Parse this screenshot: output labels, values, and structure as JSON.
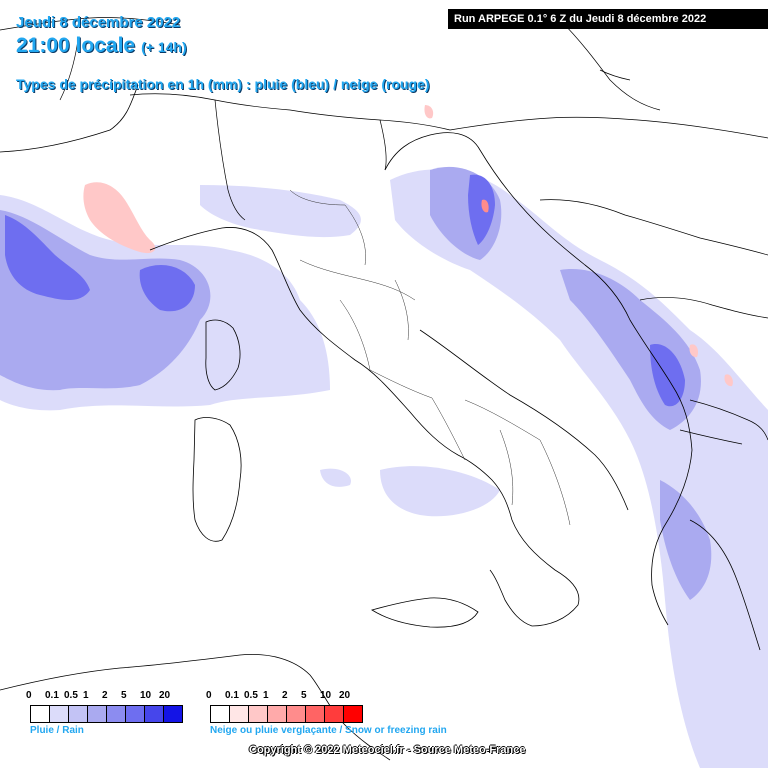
{
  "header": {
    "date_line": "Jeudi 8 décembre 2022",
    "time_line": "21:00 locale",
    "offset": "(+ 14h)",
    "subtitle": "Types de précipitation en 1h (mm) : pluie (bleu) / neige (rouge)",
    "run_label": "Run ARPEGE 0.1° 6 Z du Jeudi 8 décembre 2022"
  },
  "legend": {
    "rain": {
      "ticks": [
        "0",
        "0.1",
        "0.5",
        "1",
        "2",
        "5",
        "10",
        "20"
      ],
      "colors": [
        "#ffffff",
        "#dcdcfa",
        "#c3c3f5",
        "#aaaaf0",
        "#8c8cf0",
        "#6e6ef0",
        "#4646eb",
        "#1414e6"
      ],
      "label": "Pluie / Rain"
    },
    "snow": {
      "ticks": [
        "0",
        "0.1",
        "0.5",
        "1",
        "2",
        "5",
        "10",
        "20"
      ],
      "colors": [
        "#ffffff",
        "#ffe6e6",
        "#ffc8c8",
        "#ffaaaa",
        "#ff8c8c",
        "#ff6464",
        "#ff3c3c",
        "#ff0000"
      ],
      "label": "Neige ou pluie verglaçante / Snow or freezing rain"
    }
  },
  "footer": {
    "copyright": "Copyright © 2022 Meteociel.fr - Source Meteo-France"
  }
}
